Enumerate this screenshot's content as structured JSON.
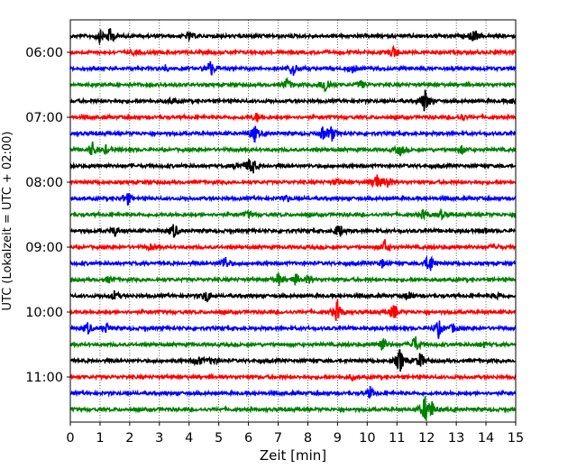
{
  "chart_data": {
    "type": "line",
    "title": "",
    "xlabel": "Zeit  [min]",
    "ylabel": "UTC (Lokalzeit = UTC + 02:00)",
    "xlim": [
      0,
      15
    ],
    "x_ticks": [
      "0",
      "1",
      "2",
      "3",
      "4",
      "5",
      "6",
      "7",
      "8",
      "9",
      "10",
      "11",
      "12",
      "13",
      "14",
      "15"
    ],
    "y_tick_labels": [
      "06:00",
      "07:00",
      "08:00",
      "09:00",
      "10:00",
      "11:00"
    ],
    "grid": "vertical dotted at each minute",
    "colors": [
      "#000000",
      "#ff0000",
      "#0000ff",
      "#008000"
    ],
    "trace_count": 24,
    "trace_interval_min": 15,
    "start_time": "05:45",
    "traces": [
      {
        "start": "05:45",
        "color_index": 0,
        "events": [
          [
            1.0,
            0.6
          ],
          [
            1.35,
            0.9
          ],
          [
            4.0,
            0.4
          ],
          [
            13.6,
            0.7
          ]
        ]
      },
      {
        "start": "06:00",
        "color_index": 1,
        "events": [
          [
            2.2,
            0.3
          ],
          [
            10.9,
            0.7
          ]
        ]
      },
      {
        "start": "06:15",
        "color_index": 2,
        "events": [
          [
            4.7,
            1.0
          ],
          [
            7.5,
            0.9
          ],
          [
            9.5,
            0.4
          ],
          [
            3.2,
            0.3
          ]
        ]
      },
      {
        "start": "06:30",
        "color_index": 3,
        "events": [
          [
            7.3,
            0.7
          ],
          [
            8.6,
            1.0
          ],
          [
            9.8,
            0.4
          ]
        ]
      },
      {
        "start": "06:45",
        "color_index": 0,
        "events": [
          [
            3.4,
            0.3
          ],
          [
            11.95,
            1.3
          ],
          [
            14.9,
            0.3
          ]
        ]
      },
      {
        "start": "07:00",
        "color_index": 1,
        "events": [
          [
            6.3,
            0.5
          ],
          [
            13.2,
            0.3
          ]
        ]
      },
      {
        "start": "07:15",
        "color_index": 2,
        "events": [
          [
            6.2,
            0.9
          ],
          [
            8.5,
            0.6
          ],
          [
            8.8,
            0.8
          ]
        ]
      },
      {
        "start": "07:30",
        "color_index": 3,
        "events": [
          [
            0.75,
            0.8
          ],
          [
            1.2,
            0.4
          ],
          [
            11.1,
            0.6
          ],
          [
            13.2,
            0.4
          ]
        ]
      },
      {
        "start": "07:45",
        "color_index": 0,
        "events": [
          [
            6.1,
            1.3
          ],
          [
            5.6,
            0.3
          ]
        ]
      },
      {
        "start": "08:00",
        "color_index": 1,
        "events": [
          [
            10.3,
            1.0
          ],
          [
            10.7,
            0.7
          ],
          [
            9.0,
            0.3
          ]
        ]
      },
      {
        "start": "08:15",
        "color_index": 2,
        "events": [
          [
            1.9,
            0.8
          ],
          [
            7.3,
            0.3
          ]
        ]
      },
      {
        "start": "08:30",
        "color_index": 3,
        "events": [
          [
            11.9,
            0.5
          ],
          [
            12.5,
            0.4
          ],
          [
            6.0,
            0.3
          ]
        ]
      },
      {
        "start": "08:45",
        "color_index": 0,
        "events": [
          [
            1.5,
            0.5
          ],
          [
            3.5,
            0.8
          ],
          [
            9.05,
            0.8
          ],
          [
            14.0,
            0.3
          ]
        ]
      },
      {
        "start": "09:00",
        "color_index": 1,
        "events": [
          [
            10.6,
            0.7
          ],
          [
            2.7,
            0.3
          ],
          [
            14.3,
            0.3
          ]
        ]
      },
      {
        "start": "09:15",
        "color_index": 2,
        "events": [
          [
            5.2,
            0.8
          ],
          [
            12.1,
            1.2
          ],
          [
            10.5,
            0.4
          ]
        ]
      },
      {
        "start": "09:30",
        "color_index": 3,
        "events": [
          [
            1.3,
            0.3
          ],
          [
            7.0,
            0.7
          ],
          [
            7.6,
            0.6
          ],
          [
            8.0,
            0.4
          ]
        ]
      },
      {
        "start": "09:45",
        "color_index": 0,
        "events": [
          [
            1.5,
            0.5
          ],
          [
            4.6,
            0.7
          ],
          [
            11.4,
            0.5
          ],
          [
            14.4,
            0.3
          ]
        ]
      },
      {
        "start": "10:00",
        "color_index": 1,
        "events": [
          [
            9.0,
            1.2
          ],
          [
            10.9,
            0.8
          ]
        ]
      },
      {
        "start": "10:15",
        "color_index": 2,
        "events": [
          [
            0.6,
            0.6
          ],
          [
            1.2,
            0.5
          ],
          [
            12.4,
            0.9
          ],
          [
            12.9,
            0.4
          ]
        ]
      },
      {
        "start": "10:30",
        "color_index": 3,
        "events": [
          [
            10.5,
            0.9
          ],
          [
            11.6,
            1.0
          ],
          [
            13.9,
            0.3
          ]
        ]
      },
      {
        "start": "10:45",
        "color_index": 0,
        "events": [
          [
            4.3,
            0.6
          ],
          [
            4.8,
            0.4
          ],
          [
            11.1,
            1.3
          ],
          [
            11.8,
            0.9
          ]
        ]
      },
      {
        "start": "11:00",
        "color_index": 1,
        "events": [
          [
            9.5,
            0.2
          ]
        ]
      },
      {
        "start": "11:15",
        "color_index": 2,
        "events": [
          [
            10.1,
            0.6
          ]
        ]
      },
      {
        "start": "11:30",
        "color_index": 3,
        "events": [
          [
            11.95,
            1.3
          ],
          [
            12.15,
            0.9
          ]
        ]
      }
    ]
  }
}
